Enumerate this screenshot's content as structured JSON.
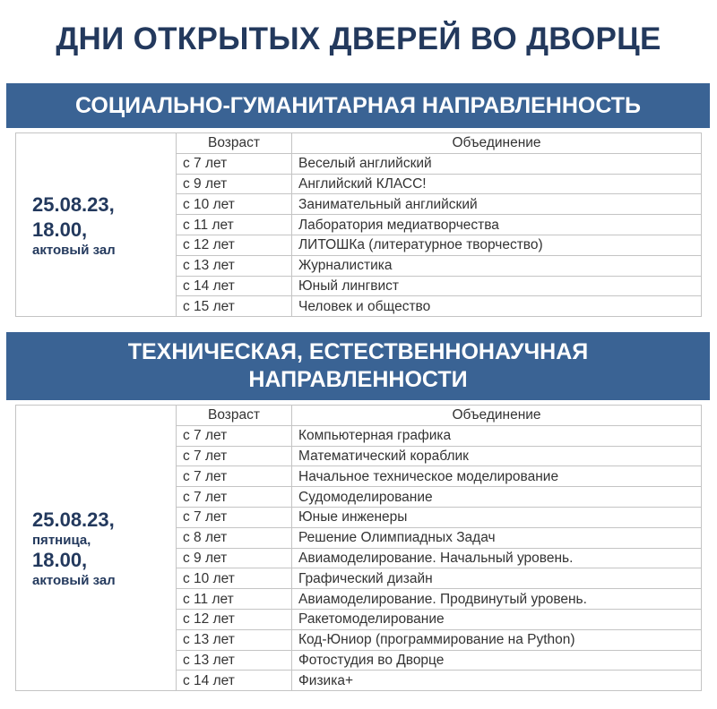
{
  "title": "ДНИ ОТКРЫТЫХ ДВЕРЕЙ ВО ДВОРЦЕ",
  "colors": {
    "banner": "#3a6394",
    "title": "#23395d"
  },
  "sections": [
    {
      "heading": "СОЦИАЛЬНО-ГУМАНИТАРНАЯ НАПРАВЛЕННОСТЬ",
      "date": "25.08.23,",
      "time": "18.00,",
      "place": "актовый зал",
      "headers": {
        "age": "Возраст",
        "name": "Объединение"
      },
      "rows": [
        {
          "age": "с 7 лет",
          "name": "Веселый английский"
        },
        {
          "age": "с 9 лет",
          "name": "Английский КЛАСС!"
        },
        {
          "age": "с 10 лет",
          "name": "Занимательный английский"
        },
        {
          "age": "с 11 лет",
          "name": "Лаборатория медиатворчества"
        },
        {
          "age": "с 12 лет",
          "name": "ЛИТОШКа (литературное творчество)"
        },
        {
          "age": "с 13 лет",
          "name": "Журналистика"
        },
        {
          "age": "с 14 лет",
          "name": "Юный лингвист"
        },
        {
          "age": "с 15 лет",
          "name": "Человек и общество"
        }
      ]
    },
    {
      "heading_line1": "ТЕХНИЧЕСКАЯ, ЕСТЕСТВЕННОНАУЧНАЯ",
      "heading_line2": "НАПРАВЛЕННОСТИ",
      "date": "25.08.23,",
      "day": "пятница,",
      "time": "18.00,",
      "place": "актовый зал",
      "headers": {
        "age": "Возраст",
        "name": "Объединение"
      },
      "rows": [
        {
          "age": "с 7 лет",
          "name": "Компьютерная графика"
        },
        {
          "age": "с 7 лет",
          "name": "Математический кораблик"
        },
        {
          "age": "с 7 лет",
          "name": "Начальное техническое моделирование"
        },
        {
          "age": "с 7 лет",
          "name": "Судомоделирование"
        },
        {
          "age": "с 7 лет",
          "name": "Юные инженеры"
        },
        {
          "age": "с 8 лет",
          "name": "Решение Олимпиадных Задач"
        },
        {
          "age": "с 9 лет",
          "name": "Авиамоделирование. Начальный уровень."
        },
        {
          "age": "с 10 лет",
          "name": "Графический дизайн"
        },
        {
          "age": "с 11 лет",
          "name": "Авиамоделирование. Продвинутый уровень."
        },
        {
          "age": "с 12 лет",
          "name": "Ракетомоделирование"
        },
        {
          "age": "с 13 лет",
          "name": "Код-Юниор (программирование на Python)"
        },
        {
          "age": "с 13 лет",
          "name": "Фотостудия во Дворце"
        },
        {
          "age": "с 14 лет",
          "name": "Физика+"
        }
      ]
    }
  ]
}
